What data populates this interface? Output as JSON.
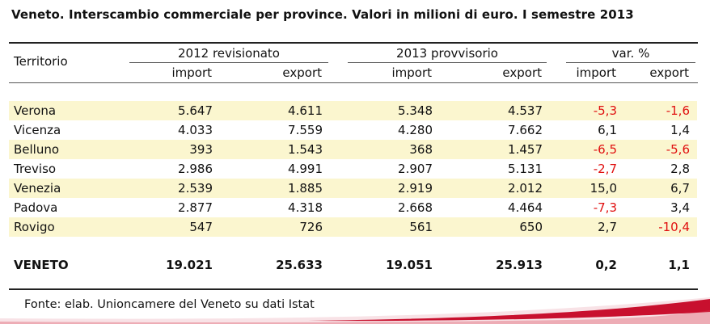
{
  "title": "Veneto. Interscambio commerciale per province. Valori in milioni di euro. I semestre 2013",
  "header": {
    "territory": "Territorio",
    "group_2012": "2012 revisionato",
    "group_2013": "2013 provvisorio",
    "group_var": "var. %",
    "import": "import",
    "export": "export"
  },
  "rows": [
    {
      "name": "Verona",
      "imp2012": "5.647",
      "exp2012": "4.611",
      "imp2013": "5.348",
      "exp2013": "4.537",
      "var_imp": "-5,3",
      "var_exp": "-1,6"
    },
    {
      "name": "Vicenza",
      "imp2012": "4.033",
      "exp2012": "7.559",
      "imp2013": "4.280",
      "exp2013": "7.662",
      "var_imp": "6,1",
      "var_exp": "1,4"
    },
    {
      "name": "Belluno",
      "imp2012": "393",
      "exp2012": "1.543",
      "imp2013": "368",
      "exp2013": "1.457",
      "var_imp": "-6,5",
      "var_exp": "-5,6"
    },
    {
      "name": "Treviso",
      "imp2012": "2.986",
      "exp2012": "4.991",
      "imp2013": "2.907",
      "exp2013": "5.131",
      "var_imp": "-2,7",
      "var_exp": "2,8"
    },
    {
      "name": "Venezia",
      "imp2012": "2.539",
      "exp2012": "1.885",
      "imp2013": "2.919",
      "exp2013": "2.012",
      "var_imp": "15,0",
      "var_exp": "6,7"
    },
    {
      "name": "Padova",
      "imp2012": "2.877",
      "exp2012": "4.318",
      "imp2013": "2.668",
      "exp2013": "4.464",
      "var_imp": "-7,3",
      "var_exp": "3,4"
    },
    {
      "name": "Rovigo",
      "imp2012": "547",
      "exp2012": "726",
      "imp2013": "561",
      "exp2013": "650",
      "var_imp": "2,7",
      "var_exp": "-10,4"
    }
  ],
  "total": {
    "name": "VENETO",
    "imp2012": "19.021",
    "exp2012": "25.633",
    "imp2013": "19.051",
    "exp2013": "25.913",
    "var_imp": "0,2",
    "var_exp": "1,1"
  },
  "source": "Fonte: elab. Unioncamere del Veneto su dati Istat",
  "colors": {
    "negative": "#e01010",
    "row_shade": "#fbf6cf",
    "swoosh": "#c8102e"
  }
}
